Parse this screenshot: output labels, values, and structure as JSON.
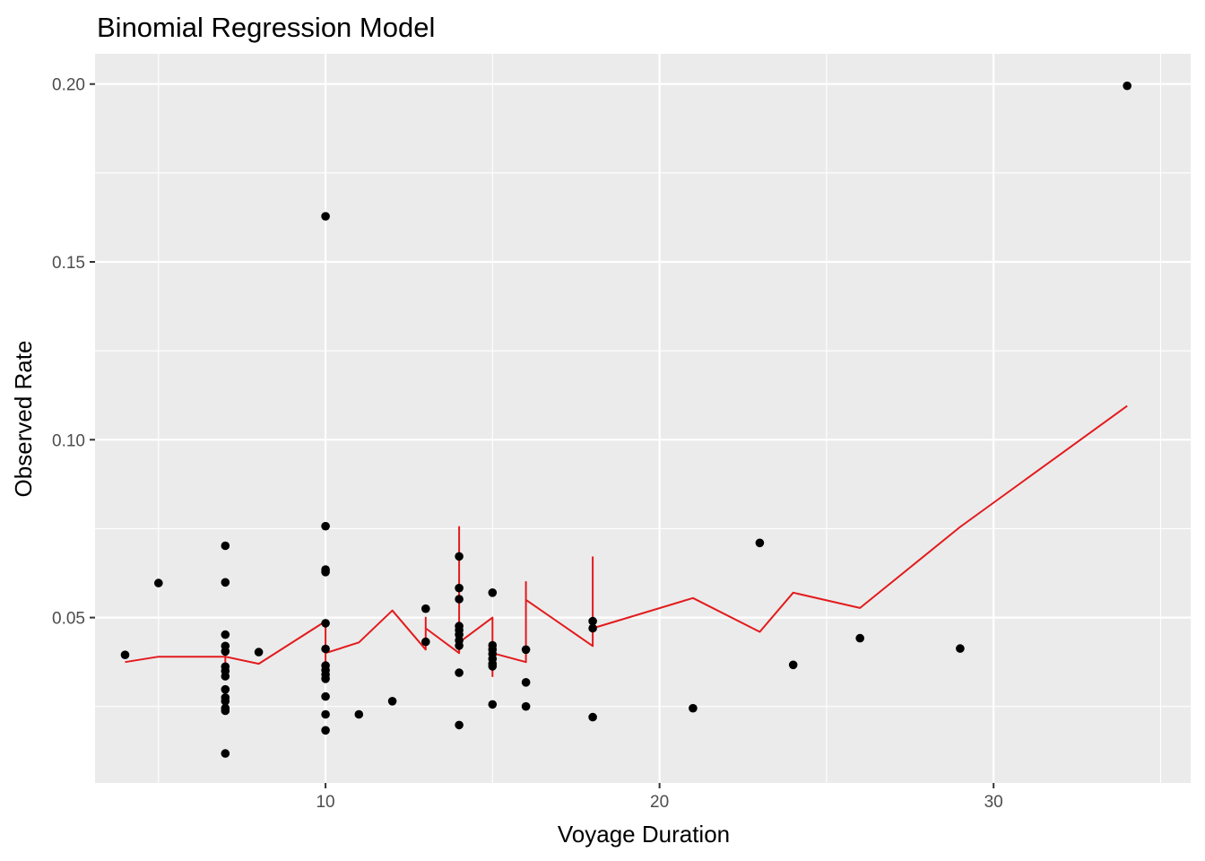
{
  "chart_data": {
    "type": "scatter",
    "title": "Binomial Regression Model",
    "xlabel": "Voyage Duration",
    "ylabel": "Observed Rate",
    "xlim": [
      3.1,
      35.9
    ],
    "ylim": [
      0.0035,
      0.2085
    ],
    "x_ticks": [
      10,
      20,
      30
    ],
    "x_tick_labels": [
      "10",
      "20",
      "30"
    ],
    "x_minor_ticks": [
      5,
      15,
      25,
      35
    ],
    "y_ticks": [
      0.05,
      0.1,
      0.15,
      0.2
    ],
    "y_tick_labels": [
      "0.05",
      "0.10",
      "0.15",
      "0.20"
    ],
    "y_minor_ticks": [
      0.025,
      0.075,
      0.125,
      0.175
    ],
    "grid": true,
    "legend": "none",
    "colors": {
      "panel": "#ebebeb",
      "grid": "#ffffff",
      "points": "#000000",
      "fit_line": "#e31a1c"
    },
    "series": [
      {
        "kind": "points",
        "x": [
          4,
          5,
          7,
          7,
          7,
          7,
          7,
          7,
          7,
          7,
          7,
          7,
          7,
          7,
          7,
          7,
          8,
          10,
          10,
          10,
          10,
          10,
          10,
          10,
          10,
          10,
          10,
          10,
          10,
          10,
          11,
          12,
          13,
          13,
          14,
          14,
          14,
          14,
          14,
          14,
          14,
          14,
          14,
          14,
          15,
          15,
          15,
          15,
          15,
          15,
          15,
          15,
          16,
          16,
          16,
          18,
          18,
          18,
          21,
          23,
          24,
          26,
          29,
          34
        ],
        "y": [
          0.0395,
          0.0597,
          0.0702,
          0.0599,
          0.0452,
          0.042,
          0.0405,
          0.0362,
          0.035,
          0.0335,
          0.0298,
          0.0275,
          0.0265,
          0.0245,
          0.0238,
          0.0118,
          0.0403,
          0.1628,
          0.0757,
          0.0635,
          0.0628,
          0.0484,
          0.0412,
          0.0365,
          0.0352,
          0.034,
          0.0328,
          0.0278,
          0.0183,
          0.0228,
          0.0228,
          0.0265,
          0.0525,
          0.0432,
          0.0672,
          0.0583,
          0.0552,
          0.0476,
          0.0465,
          0.0452,
          0.0436,
          0.0421,
          0.0345,
          0.0198,
          0.057,
          0.0422,
          0.041,
          0.0398,
          0.0384,
          0.037,
          0.0363,
          0.0256,
          0.041,
          0.0318,
          0.025,
          0.049,
          0.047,
          0.022,
          0.0245,
          0.071,
          0.0367,
          0.0442,
          0.0413,
          0.1995
        ]
      },
      {
        "kind": "line",
        "x": [
          4,
          5,
          7,
          7,
          7,
          7,
          8,
          10,
          10,
          10,
          11,
          12,
          13,
          13,
          13,
          14,
          14,
          14,
          15,
          15,
          15,
          16,
          16,
          16,
          18,
          18,
          18,
          21,
          23,
          24,
          26,
          29,
          34
        ],
        "y": [
          0.0375,
          0.039,
          0.039,
          0.035,
          0.042,
          0.039,
          0.037,
          0.049,
          0.037,
          0.04,
          0.043,
          0.052,
          0.041,
          0.05,
          0.047,
          0.04,
          0.0755,
          0.043,
          0.05,
          0.0335,
          0.04,
          0.0375,
          0.06,
          0.055,
          0.042,
          0.067,
          0.047,
          0.0555,
          0.046,
          0.057,
          0.0527,
          0.0755,
          0.1095
        ]
      }
    ]
  }
}
